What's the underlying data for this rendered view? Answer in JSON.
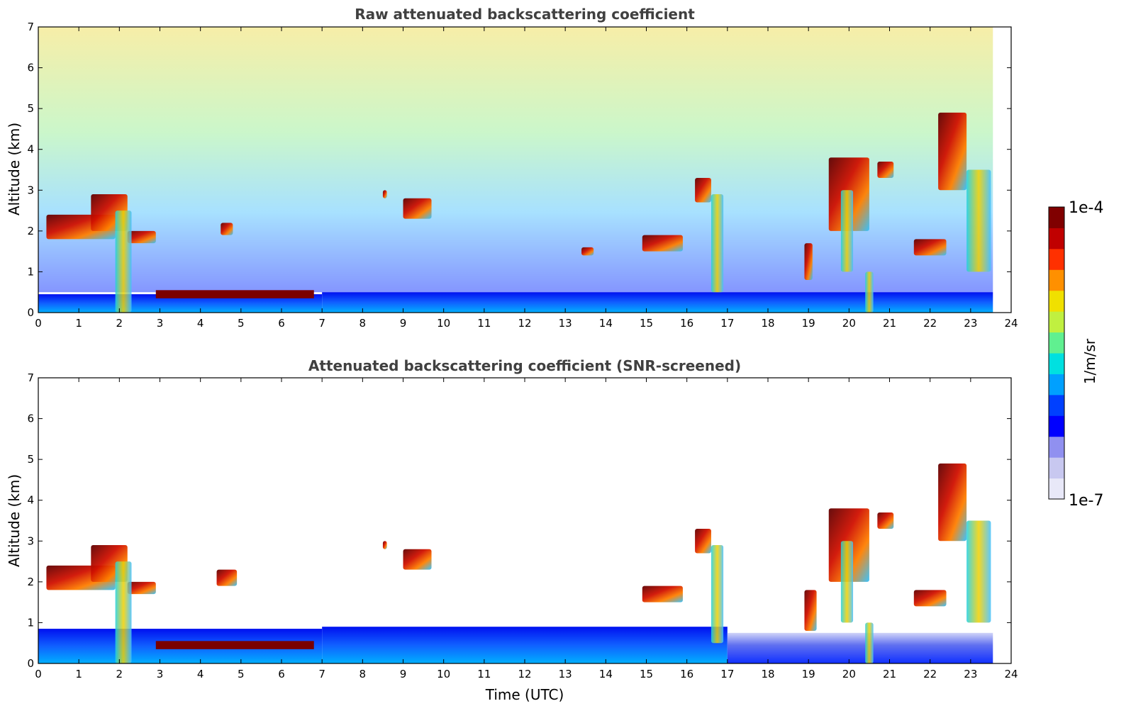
{
  "chart_data": [
    {
      "type": "heatmap",
      "title": "Raw attenuated backscattering coefficient",
      "xlabel": "",
      "ylabel": "Altitude (km)",
      "xlim": [
        0,
        24
      ],
      "ylim": [
        0,
        7
      ],
      "xticks": [
        "0",
        "1",
        "2",
        "3",
        "4",
        "5",
        "6",
        "7",
        "8",
        "9",
        "10",
        "11",
        "12",
        "13",
        "14",
        "15",
        "16",
        "17",
        "18",
        "19",
        "20",
        "21",
        "22",
        "23",
        "24"
      ],
      "yticks": [
        "0",
        "1",
        "2",
        "3",
        "4",
        "5",
        "6",
        "7"
      ],
      "data_end_time": 23.55,
      "features": [
        {
          "kind": "noise",
          "description_value": "background",
          "x": [
            0,
            23.55
          ],
          "y": [
            0.5,
            7
          ]
        },
        {
          "kind": "boundary_layer",
          "x": [
            0,
            7
          ],
          "y": [
            0,
            0.45
          ]
        },
        {
          "kind": "boundary_layer",
          "x": [
            7,
            23.55
          ],
          "y": [
            0,
            0.5
          ]
        },
        {
          "kind": "cloud",
          "x": [
            0.2,
            1.9
          ],
          "y": [
            1.8,
            2.4
          ]
        },
        {
          "kind": "cloud",
          "x": [
            1.3,
            2.2
          ],
          "y": [
            2.0,
            2.9
          ]
        },
        {
          "kind": "cloud",
          "x": [
            2.2,
            2.9
          ],
          "y": [
            1.7,
            2.0
          ]
        },
        {
          "kind": "precip",
          "x": [
            1.9,
            2.3
          ],
          "y": [
            0,
            2.5
          ]
        },
        {
          "kind": "layer",
          "x": [
            2.9,
            6.8
          ],
          "y": [
            0.35,
            0.55
          ]
        },
        {
          "kind": "cloud",
          "x": [
            4.5,
            4.8
          ],
          "y": [
            1.9,
            2.2
          ]
        },
        {
          "kind": "cloud",
          "x": [
            8.5,
            8.6
          ],
          "y": [
            2.8,
            3.0
          ]
        },
        {
          "kind": "cloud",
          "x": [
            9.0,
            9.7
          ],
          "y": [
            2.3,
            2.8
          ]
        },
        {
          "kind": "cloud",
          "x": [
            13.4,
            13.7
          ],
          "y": [
            1.4,
            1.6
          ]
        },
        {
          "kind": "cloud",
          "x": [
            14.9,
            15.9
          ],
          "y": [
            1.5,
            1.9
          ]
        },
        {
          "kind": "cloud",
          "x": [
            16.2,
            16.6
          ],
          "y": [
            2.7,
            3.3
          ]
        },
        {
          "kind": "precip",
          "x": [
            16.6,
            16.9
          ],
          "y": [
            0.5,
            2.9
          ]
        },
        {
          "kind": "cloud",
          "x": [
            18.9,
            19.1
          ],
          "y": [
            0.8,
            1.7
          ]
        },
        {
          "kind": "cloud",
          "x": [
            19.5,
            20.5
          ],
          "y": [
            2.0,
            3.8
          ]
        },
        {
          "kind": "precip",
          "x": [
            19.8,
            20.1
          ],
          "y": [
            1.0,
            3.0
          ]
        },
        {
          "kind": "cloud",
          "x": [
            20.7,
            21.1
          ],
          "y": [
            3.3,
            3.7
          ]
        },
        {
          "kind": "precip",
          "x": [
            20.4,
            20.6
          ],
          "y": [
            0,
            1.0
          ]
        },
        {
          "kind": "cloud",
          "x": [
            21.6,
            22.4
          ],
          "y": [
            1.4,
            1.8
          ]
        },
        {
          "kind": "cloud",
          "x": [
            22.2,
            22.9
          ],
          "y": [
            3.0,
            4.9
          ]
        },
        {
          "kind": "precip",
          "x": [
            22.9,
            23.5
          ],
          "y": [
            1.0,
            3.5
          ]
        }
      ]
    },
    {
      "type": "heatmap",
      "title": "Attenuated backscattering coefficient (SNR-screened)",
      "xlabel": "Time (UTC)",
      "ylabel": "Altitude (km)",
      "xlim": [
        0,
        24
      ],
      "ylim": [
        0,
        7
      ],
      "xticks": [
        "0",
        "1",
        "2",
        "3",
        "4",
        "5",
        "6",
        "7",
        "8",
        "9",
        "10",
        "11",
        "12",
        "13",
        "14",
        "15",
        "16",
        "17",
        "18",
        "19",
        "20",
        "21",
        "22",
        "23",
        "24"
      ],
      "yticks": [
        "0",
        "1",
        "2",
        "3",
        "4",
        "5",
        "6",
        "7"
      ],
      "data_end_time": 23.55,
      "features": [
        {
          "kind": "boundary_layer",
          "x": [
            0,
            7
          ],
          "y": [
            0,
            0.85
          ]
        },
        {
          "kind": "boundary_layer",
          "x": [
            7,
            17
          ],
          "y": [
            0,
            0.9
          ]
        },
        {
          "kind": "boundary_layer_faint",
          "x": [
            17,
            23.55
          ],
          "y": [
            0,
            0.75
          ]
        },
        {
          "kind": "layer",
          "x": [
            2.9,
            6.8
          ],
          "y": [
            0.35,
            0.55
          ]
        },
        {
          "kind": "cloud",
          "x": [
            0.2,
            1.9
          ],
          "y": [
            1.8,
            2.4
          ]
        },
        {
          "kind": "cloud",
          "x": [
            1.3,
            2.2
          ],
          "y": [
            2.0,
            2.9
          ]
        },
        {
          "kind": "cloud",
          "x": [
            2.2,
            2.9
          ],
          "y": [
            1.7,
            2.0
          ]
        },
        {
          "kind": "precip",
          "x": [
            1.9,
            2.3
          ],
          "y": [
            0,
            2.5
          ]
        },
        {
          "kind": "cloud",
          "x": [
            4.4,
            4.9
          ],
          "y": [
            1.9,
            2.3
          ]
        },
        {
          "kind": "cloud",
          "x": [
            8.5,
            8.6
          ],
          "y": [
            2.8,
            3.0
          ]
        },
        {
          "kind": "cloud",
          "x": [
            9.0,
            9.7
          ],
          "y": [
            2.3,
            2.8
          ]
        },
        {
          "kind": "cloud",
          "x": [
            14.9,
            15.9
          ],
          "y": [
            1.5,
            1.9
          ]
        },
        {
          "kind": "cloud",
          "x": [
            16.2,
            16.6
          ],
          "y": [
            2.7,
            3.3
          ]
        },
        {
          "kind": "precip",
          "x": [
            16.6,
            16.9
          ],
          "y": [
            0.5,
            2.9
          ]
        },
        {
          "kind": "cloud",
          "x": [
            18.9,
            19.2
          ],
          "y": [
            0.8,
            1.8
          ]
        },
        {
          "kind": "cloud",
          "x": [
            19.5,
            20.5
          ],
          "y": [
            2.0,
            3.8
          ]
        },
        {
          "kind": "precip",
          "x": [
            19.8,
            20.1
          ],
          "y": [
            1.0,
            3.0
          ]
        },
        {
          "kind": "cloud",
          "x": [
            20.7,
            21.1
          ],
          "y": [
            3.3,
            3.7
          ]
        },
        {
          "kind": "precip",
          "x": [
            20.4,
            20.6
          ],
          "y": [
            0,
            1.0
          ]
        },
        {
          "kind": "cloud",
          "x": [
            21.6,
            22.4
          ],
          "y": [
            1.4,
            1.8
          ]
        },
        {
          "kind": "cloud",
          "x": [
            22.2,
            22.9
          ],
          "y": [
            3.0,
            4.9
          ]
        },
        {
          "kind": "precip",
          "x": [
            22.9,
            23.5
          ],
          "y": [
            1.0,
            3.5
          ]
        }
      ]
    }
  ],
  "colorbar": {
    "max_label": "1e-4",
    "min_label": "1e-7",
    "unit": "1/m/sr",
    "colors": [
      "#e8e8f8",
      "#c8c8f0",
      "#9090f0",
      "#0000ff",
      "#0040ff",
      "#00a0ff",
      "#00e0e0",
      "#60f090",
      "#c0f040",
      "#f0e000",
      "#ff9000",
      "#ff3000",
      "#c00000",
      "#800000"
    ]
  },
  "colors": {
    "low": "#0000ff",
    "mid": "#00c8ff",
    "high": "#800000",
    "noise": "#6fc8ff"
  }
}
